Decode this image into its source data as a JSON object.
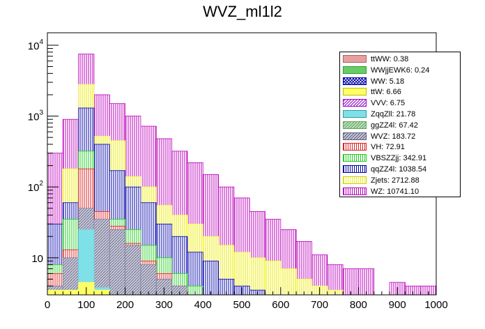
{
  "chart_data": {
    "type": "bar",
    "stacked": true,
    "title": "WVZ_ml1l2",
    "xlabel": "",
    "ylabel": "",
    "xlim": [
      0,
      1000
    ],
    "ylim": [
      3,
      15000
    ],
    "yscale": "log",
    "xticks": [
      0,
      100,
      200,
      300,
      400,
      500,
      600,
      700,
      800,
      900,
      1000
    ],
    "ytick_labels": [
      {
        "value": 10,
        "base": "10",
        "exp": ""
      },
      {
        "value": 100,
        "base": "10",
        "exp": "2"
      },
      {
        "value": 1000,
        "base": "10",
        "exp": "3"
      },
      {
        "value": 10000,
        "base": "10",
        "exp": "4"
      }
    ],
    "bin_edges": [
      0,
      40,
      80,
      120,
      160,
      200,
      240,
      280,
      320,
      360,
      400,
      440,
      480,
      520,
      560,
      600,
      640,
      680,
      720,
      760,
      800,
      840,
      880,
      920,
      960,
      1000
    ],
    "legend_position": "top-right",
    "stack_order_bottom_to_top": [
      "ttWW",
      "WWjjEWK6",
      "WW",
      "ttW",
      "VVV",
      "ZqqZll",
      "ggZZ4l",
      "WVZ",
      "VH",
      "VBSZZjj",
      "qqZZ4l",
      "Zjets",
      "WZ"
    ],
    "series": [
      {
        "name": "ttWW",
        "label": "ttWW: 0.38",
        "color": "#e6a0a0",
        "pattern": "fill"
      },
      {
        "name": "WWjjEWK6",
        "label": "WWjjEWK6: 0.24",
        "color": "#66cc66",
        "pattern": "fill"
      },
      {
        "name": "WW",
        "label": "WW: 5.18",
        "color": "#0000b0",
        "pattern": "cross"
      },
      {
        "name": "ttW",
        "label": "ttW: 6.66",
        "color": "#ffff66",
        "pattern": "fill"
      },
      {
        "name": "VVV",
        "label": "VVV: 6.75",
        "color": "#9900cc",
        "pattern": "diag"
      },
      {
        "name": "ZqqZll",
        "label": "ZqqZll: 21.78",
        "color": "#66d9e0",
        "pattern": "fill"
      },
      {
        "name": "ggZZ4l",
        "label": "ggZZ4l: 67.42",
        "color": "#7fbf7f",
        "pattern": "diag"
      },
      {
        "name": "WVZ",
        "label": "WVZ: 183.72",
        "color": "#8080a0",
        "pattern": "diag"
      },
      {
        "name": "VH",
        "label": "VH: 72.91",
        "color": "#dd2222",
        "pattern": "vert"
      },
      {
        "name": "VBSZZjj",
        "label": "VBSZZjj: 342.91",
        "color": "#22cc22",
        "pattern": "vert"
      },
      {
        "name": "qqZZ4l",
        "label": "qqZZ4l: 1038.54",
        "color": "#0000aa",
        "pattern": "vert"
      },
      {
        "name": "Zjets",
        "label": "Zjets: 2712.88",
        "color": "#ffff44",
        "pattern": "vert"
      },
      {
        "name": "WZ",
        "label": "WZ: 10741.10",
        "color": "#bb00bb",
        "pattern": "vert"
      }
    ],
    "cumulative_totals": {
      "ttW": [
        3.5,
        3.5,
        4.5,
        3.5,
        3,
        3,
        3,
        3,
        3,
        3,
        3,
        3,
        3,
        3,
        3,
        3,
        3,
        3,
        3,
        3,
        3,
        3,
        3,
        3,
        3
      ],
      "ZqqZll": [
        3.5,
        3.5,
        25,
        3.8,
        3,
        3,
        3,
        3,
        3,
        3,
        3,
        3,
        3,
        3,
        3,
        3,
        3,
        3,
        3,
        3,
        3,
        3,
        3,
        3,
        3
      ],
      "WVZ": [
        4,
        10,
        50,
        35,
        25,
        15,
        8,
        5,
        4,
        3,
        3,
        3,
        3,
        3,
        3,
        3,
        3,
        3,
        3,
        3,
        3,
        3,
        3,
        3,
        3
      ],
      "VH": [
        6,
        13,
        180,
        45,
        28,
        16,
        9,
        6,
        4,
        3,
        3,
        3,
        3,
        3,
        3,
        3,
        3,
        3,
        3,
        3,
        3,
        3,
        3,
        3,
        3
      ],
      "VBSZZjj": [
        8,
        35,
        320,
        45,
        35,
        25,
        15,
        10,
        6,
        4,
        3,
        3,
        3,
        3,
        3,
        3,
        3,
        3,
        3,
        3,
        3,
        3,
        3,
        3,
        3
      ],
      "qqZZ4l": [
        30,
        60,
        1300,
        400,
        170,
        100,
        60,
        30,
        20,
        12,
        9,
        5,
        4,
        3.5,
        3,
        3,
        3,
        3,
        3,
        3,
        3,
        3,
        3,
        3,
        3
      ],
      "Zjets": [
        30,
        180,
        2800,
        520,
        450,
        140,
        100,
        55,
        40,
        30,
        20,
        15,
        12,
        10,
        9,
        7,
        5,
        4,
        3.5,
        3,
        3,
        3,
        3,
        3,
        3
      ],
      "WZ": [
        300,
        900,
        7500,
        2000,
        1500,
        1000,
        720,
        480,
        320,
        220,
        150,
        100,
        70,
        45,
        35,
        25,
        17,
        11,
        8,
        7,
        7,
        3,
        4.5,
        4,
        4
      ]
    }
  }
}
